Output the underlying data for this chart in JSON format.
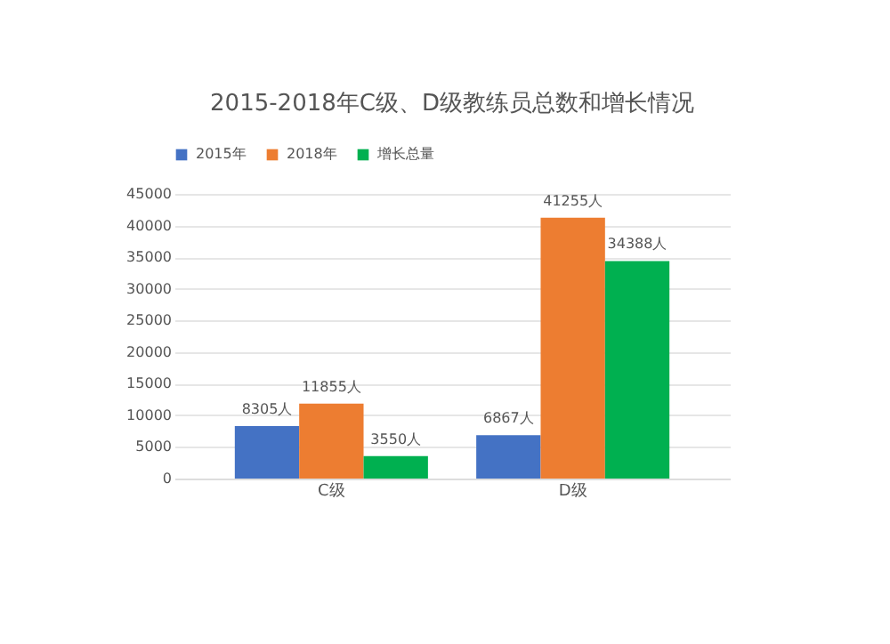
{
  "chart_data": {
    "type": "bar",
    "title": "2015-2018年C级、D级教练员总数和增长情况",
    "categories": [
      "C级",
      "D级"
    ],
    "series": [
      {
        "name": "2015年",
        "color": "#4472c4",
        "values": [
          8305,
          6867
        ],
        "value_labels": [
          "8305人",
          "6867人"
        ]
      },
      {
        "name": "2018年",
        "color": "#ed7d31",
        "values": [
          11855,
          41255
        ],
        "value_labels": [
          "11855人",
          "41255人"
        ]
      },
      {
        "name": "增长总量",
        "color": "#00b050",
        "values": [
          3550,
          34388
        ],
        "value_labels": [
          "3550人",
          "34388人"
        ]
      }
    ],
    "ylim": [
      0,
      45000
    ],
    "yticks": [
      0,
      5000,
      10000,
      15000,
      20000,
      25000,
      30000,
      35000,
      40000,
      45000
    ],
    "grid": "y",
    "legend": "top"
  }
}
